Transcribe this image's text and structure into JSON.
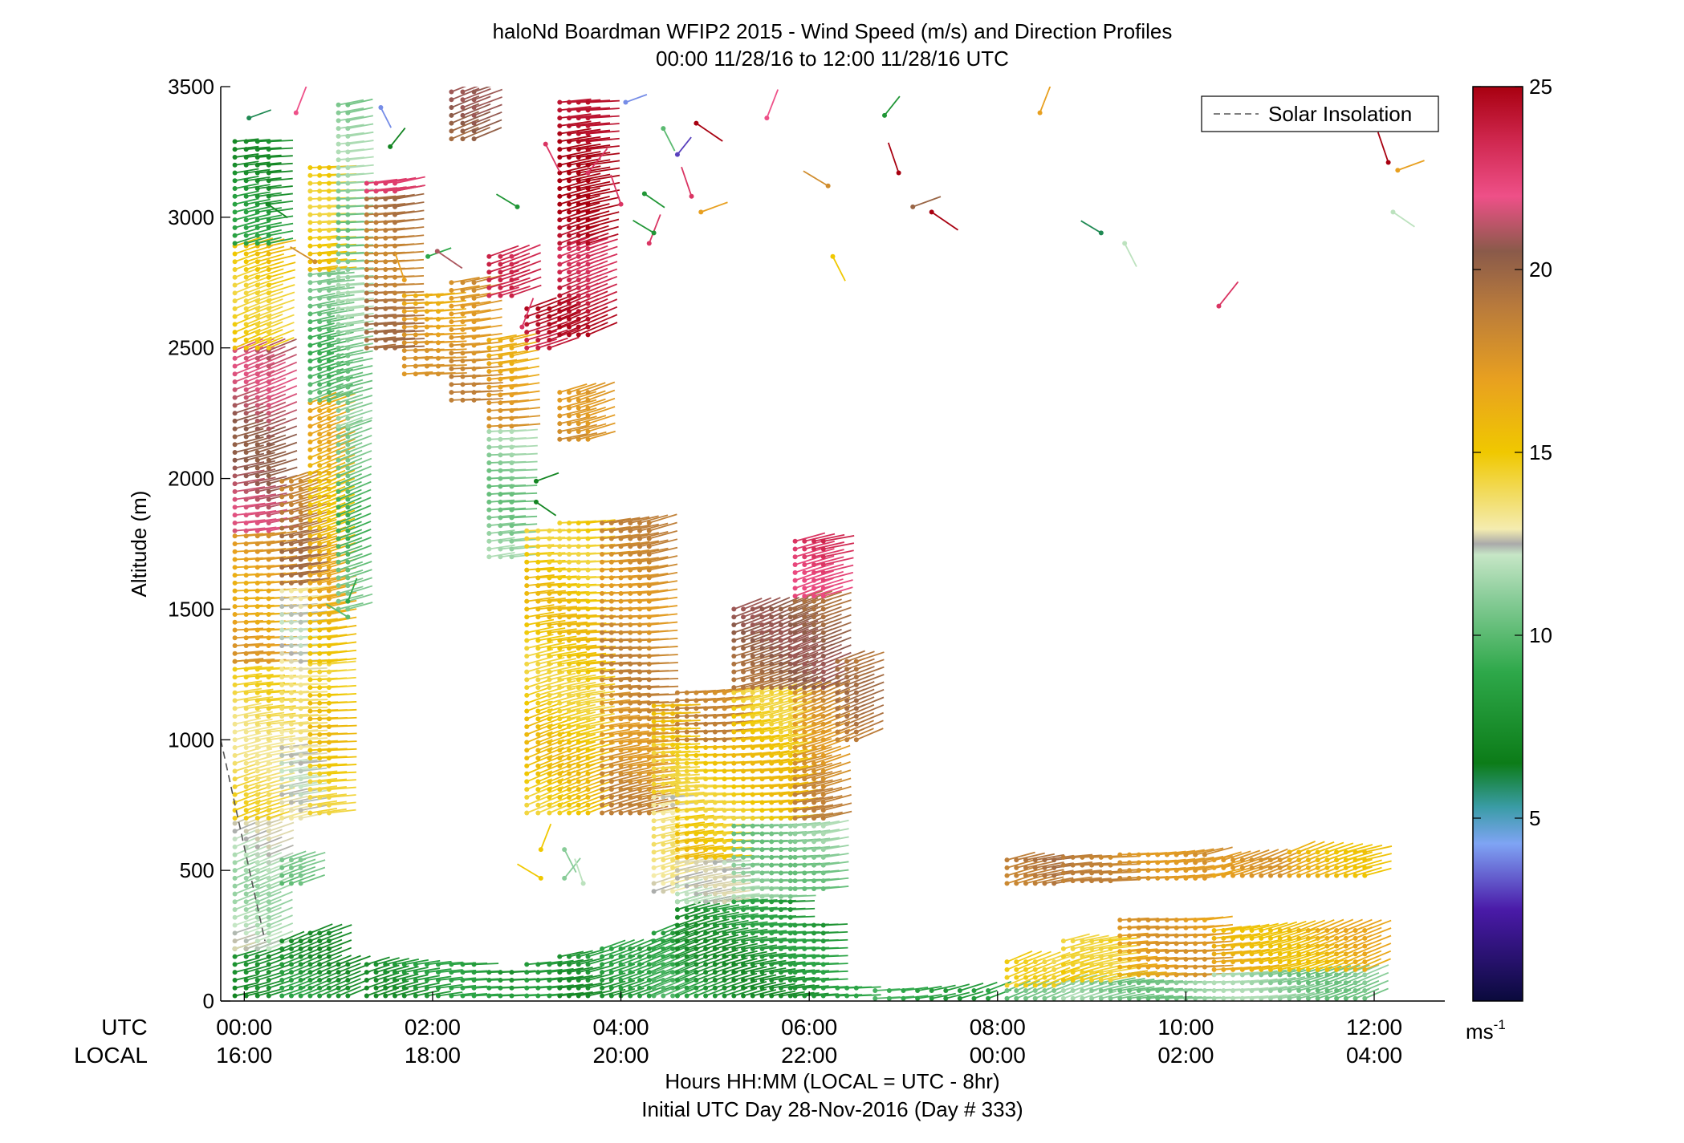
{
  "chart_data": {
    "type": "scatter",
    "title": "haloNd Boardman WFIP2 2015 - Wind Speed (m/s) and Direction Profiles",
    "subtitle": "00:00 11/28/16 to 12:00 11/28/16  UTC",
    "ylabel": "Altitude (m)",
    "xlabel": "Hours HH:MM  (LOCAL = UTC - 8hr)",
    "xlabel2": "Initial UTC Day 28-Nov-2016 (Day # 333)",
    "xlim": [
      -0.25,
      12.75
    ],
    "ylim": [
      0,
      3500
    ],
    "y_ticks": [
      0,
      500,
      1000,
      1500,
      2000,
      2500,
      3000,
      3500
    ],
    "x_ticks": [
      0,
      2,
      4,
      6,
      8,
      10,
      12
    ],
    "utc_row_label": "UTC",
    "local_row_label": "LOCAL",
    "utc_tick_labels": [
      "00:00",
      "02:00",
      "04:00",
      "06:00",
      "08:00",
      "10:00",
      "12:00"
    ],
    "local_tick_labels": [
      "16:00",
      "18:00",
      "20:00",
      "22:00",
      "00:00",
      "02:00",
      "04:00"
    ],
    "legend": {
      "label": "Solar Insolation",
      "placement": "top-right",
      "style": "dashed",
      "color": "#808080"
    },
    "solar_insolation": {
      "x": [
        -0.25,
        0.22
      ],
      "y": [
        1000,
        230
      ]
    },
    "colorbar": {
      "min": 0,
      "max": 25,
      "ticks": [
        5,
        10,
        15,
        20,
        25
      ],
      "unit_label": "ms",
      "unit_exponent": "-1",
      "stops": [
        {
          "v": 0,
          "c": "#0a0a3c"
        },
        {
          "v": 2.5,
          "c": "#4a1aa8"
        },
        {
          "v": 4.3,
          "c": "#7fa4f4"
        },
        {
          "v": 5.3,
          "c": "#3a9ca6"
        },
        {
          "v": 6.5,
          "c": "#0c7c18"
        },
        {
          "v": 9,
          "c": "#2ea84a"
        },
        {
          "v": 11,
          "c": "#88cc98"
        },
        {
          "v": 12.2,
          "c": "#c6e6c6"
        },
        {
          "v": 12.5,
          "c": "#aaaaaa"
        },
        {
          "v": 12.9,
          "c": "#f4ecb0"
        },
        {
          "v": 15,
          "c": "#f0c800"
        },
        {
          "v": 17,
          "c": "#e8a020"
        },
        {
          "v": 19,
          "c": "#b87a3c"
        },
        {
          "v": 20.5,
          "c": "#8a5a4a"
        },
        {
          "v": 22,
          "c": "#ee5088"
        },
        {
          "v": 23.5,
          "c": "#d02850"
        },
        {
          "v": 25,
          "c": "#a80010"
        }
      ]
    },
    "profiles": [
      {
        "t0": -0.1,
        "t1": 0.35,
        "dt": 0.12,
        "layers": [
          [
            20,
            200,
            7
          ],
          [
            200,
            700,
            12
          ],
          [
            700,
            1300,
            14
          ],
          [
            1300,
            1800,
            17
          ],
          [
            1800,
            2500,
            21
          ],
          [
            2500,
            2900,
            15
          ],
          [
            2900,
            3300,
            8
          ]
        ]
      },
      {
        "t0": 0.4,
        "t1": 0.6,
        "dt": 0.1,
        "layers": [
          [
            20,
            250,
            8
          ],
          [
            450,
            550,
            10
          ],
          [
            700,
            1600,
            13
          ],
          [
            1600,
            2000,
            19
          ]
        ]
      },
      {
        "t0": 0.7,
        "t1": 0.95,
        "dt": 0.1,
        "layers": [
          [
            20,
            260,
            8
          ],
          [
            720,
            1300,
            15
          ],
          [
            1300,
            2300,
            16
          ],
          [
            2300,
            2800,
            10
          ],
          [
            2800,
            3200,
            15
          ]
        ]
      },
      {
        "t0": 1.0,
        "t1": 1.1,
        "dt": 0.1,
        "layers": [
          [
            20,
            160,
            8
          ],
          [
            1500,
            2200,
            10
          ],
          [
            2200,
            2800,
            11
          ],
          [
            2800,
            3450,
            11
          ]
        ]
      },
      {
        "t0": 1.3,
        "t1": 1.6,
        "dt": 0.1,
        "layers": [
          [
            20,
            160,
            8
          ],
          [
            2500,
            3100,
            19
          ],
          [
            3100,
            3150,
            22
          ]
        ]
      },
      {
        "t0": 1.7,
        "t1": 2.1,
        "dt": 0.12,
        "layers": [
          [
            20,
            160,
            8
          ],
          [
            2400,
            2700,
            17
          ]
        ]
      },
      {
        "t0": 2.2,
        "t1": 2.5,
        "dt": 0.12,
        "layers": [
          [
            20,
            150,
            8
          ],
          [
            2300,
            2750,
            18
          ],
          [
            3300,
            3480,
            20
          ]
        ]
      },
      {
        "t0": 2.6,
        "t1": 2.85,
        "dt": 0.12,
        "layers": [
          [
            20,
            120,
            8
          ],
          [
            1700,
            2200,
            11
          ],
          [
            2200,
            2550,
            17
          ],
          [
            2700,
            2850,
            23
          ]
        ]
      },
      {
        "t0": 3.0,
        "t1": 3.25,
        "dt": 0.12,
        "layers": [
          [
            20,
            160,
            9
          ],
          [
            720,
            1800,
            15
          ],
          [
            2500,
            2650,
            24
          ]
        ]
      },
      {
        "t0": 3.35,
        "t1": 3.7,
        "dt": 0.1,
        "layers": [
          [
            20,
            190,
            8
          ],
          [
            720,
            1850,
            15
          ],
          [
            2150,
            2350,
            18
          ],
          [
            2550,
            2900,
            24
          ],
          [
            2900,
            3450,
            25
          ]
        ]
      },
      {
        "t0": 3.8,
        "t1": 4.3,
        "dt": 0.1,
        "layers": [
          [
            20,
            200,
            8
          ],
          [
            720,
            1850,
            18
          ]
        ]
      },
      {
        "t0": 4.35,
        "t1": 4.55,
        "dt": 0.1,
        "layers": [
          [
            20,
            260,
            9
          ],
          [
            420,
            800,
            13
          ],
          [
            800,
            1150,
            15
          ]
        ]
      },
      {
        "t0": 4.6,
        "t1": 5.1,
        "dt": 0.1,
        "layers": [
          [
            20,
            380,
            8
          ],
          [
            380,
            550,
            12
          ],
          [
            550,
            1000,
            15
          ],
          [
            1000,
            1200,
            18
          ]
        ]
      },
      {
        "t0": 5.2,
        "t1": 5.8,
        "dt": 0.1,
        "layers": [
          [
            20,
            400,
            8
          ],
          [
            400,
            700,
            11
          ],
          [
            700,
            1200,
            15
          ],
          [
            1200,
            1500,
            20
          ]
        ]
      },
      {
        "t0": 5.85,
        "t1": 6.2,
        "dt": 0.1,
        "layers": [
          [
            20,
            300,
            8
          ],
          [
            430,
            700,
            11
          ],
          [
            700,
            1200,
            18
          ],
          [
            1200,
            1550,
            20
          ],
          [
            1550,
            1780,
            23
          ]
        ]
      },
      {
        "t0": 6.3,
        "t1": 6.55,
        "dt": 0.1,
        "layers": [
          [
            20,
            60,
            8
          ],
          [
            1000,
            1300,
            19
          ]
        ]
      },
      {
        "t0": 6.7,
        "t1": 8.0,
        "dt": 0.15,
        "layers": [
          [
            10,
            40,
            9
          ]
        ]
      },
      {
        "t0": 8.1,
        "t1": 8.6,
        "dt": 0.1,
        "layers": [
          [
            10,
            60,
            10
          ],
          [
            60,
            150,
            14
          ],
          [
            450,
            560,
            19
          ]
        ]
      },
      {
        "t0": 8.7,
        "t1": 9.2,
        "dt": 0.1,
        "layers": [
          [
            10,
            80,
            11
          ],
          [
            80,
            250,
            15
          ],
          [
            460,
            560,
            18
          ]
        ]
      },
      {
        "t0": 9.3,
        "t1": 10.2,
        "dt": 0.1,
        "layers": [
          [
            10,
            100,
            11
          ],
          [
            100,
            330,
            17
          ],
          [
            470,
            570,
            18
          ]
        ]
      },
      {
        "t0": 10.3,
        "t1": 11.0,
        "dt": 0.1,
        "layers": [
          [
            10,
            120,
            11
          ],
          [
            120,
            280,
            16
          ],
          [
            480,
            560,
            17
          ]
        ]
      },
      {
        "t0": 11.1,
        "t1": 11.95,
        "dt": 0.1,
        "layers": [
          [
            10,
            120,
            11
          ],
          [
            120,
            290,
            16
          ],
          [
            480,
            570,
            16
          ]
        ]
      }
    ],
    "scattered": [
      [
        0.05,
        3380,
        6
      ],
      [
        0.25,
        3050,
        7
      ],
      [
        0.55,
        3400,
        22
      ],
      [
        0.75,
        2830,
        18
      ],
      [
        1.45,
        3420,
        4
      ],
      [
        1.55,
        3270,
        7
      ],
      [
        1.7,
        2760,
        17
      ],
      [
        1.95,
        2850,
        9
      ],
      [
        2.05,
        2870,
        21
      ],
      [
        2.95,
        2580,
        23
      ],
      [
        2.9,
        3040,
        8
      ],
      [
        3.2,
        3280,
        23
      ],
      [
        3.65,
        3170,
        23
      ],
      [
        4.0,
        3050,
        23
      ],
      [
        4.05,
        3440,
        4
      ],
      [
        4.25,
        3090,
        8
      ],
      [
        4.3,
        2900,
        23
      ],
      [
        4.35,
        2940,
        8
      ],
      [
        4.45,
        3340,
        10
      ],
      [
        4.6,
        3240,
        3
      ],
      [
        4.75,
        3080,
        23
      ],
      [
        4.85,
        3020,
        17
      ],
      [
        4.8,
        3360,
        25
      ],
      [
        5.55,
        3380,
        22
      ],
      [
        6.2,
        3120,
        18
      ],
      [
        6.25,
        2850,
        15
      ],
      [
        6.8,
        3390,
        8
      ],
      [
        6.95,
        3170,
        25
      ],
      [
        7.1,
        3040,
        20
      ],
      [
        7.3,
        3020,
        25
      ],
      [
        8.45,
        3400,
        17
      ],
      [
        9.1,
        2940,
        6
      ],
      [
        9.35,
        2900,
        12
      ],
      [
        10.35,
        2660,
        23
      ],
      [
        12.15,
        3210,
        25
      ],
      [
        12.25,
        3180,
        17
      ],
      [
        12.2,
        3020,
        12
      ],
      [
        3.15,
        580,
        15
      ],
      [
        3.15,
        470,
        15
      ],
      [
        3.4,
        580,
        11
      ],
      [
        3.4,
        470,
        11
      ],
      [
        3.6,
        450,
        12
      ],
      [
        3.1,
        1990,
        7
      ],
      [
        3.1,
        1910,
        7
      ],
      [
        1.1,
        1530,
        9
      ],
      [
        1.1,
        1470,
        10
      ]
    ]
  }
}
